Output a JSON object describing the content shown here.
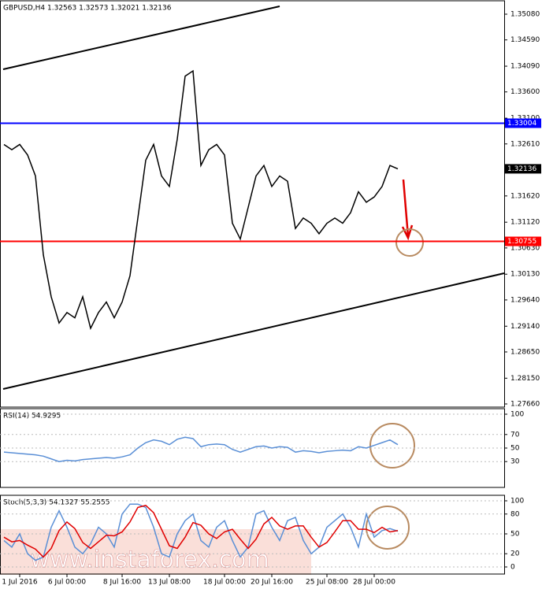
{
  "chart_data": [
    {
      "type": "line",
      "title": "GBPUSD,H4  1.32563 1.32573 1.32021 1.32136",
      "categories": [
        null,
        null,
        "1 Jul 2016",
        null,
        null,
        null,
        null,
        null,
        "6 Jul 00:00",
        null,
        null,
        null,
        null,
        null,
        null,
        "8 Jul 16:00",
        null,
        null,
        null,
        null,
        null,
        "13 Jul 08:00",
        null,
        null,
        null,
        null,
        null,
        null,
        "18 Jul 00:00",
        null,
        null,
        null,
        null,
        null,
        "20 Jul 16:00",
        null,
        null,
        null,
        null,
        null,
        null,
        "25 Jul 08:00",
        null,
        null,
        null,
        null,
        null,
        "28 Jul 00:00",
        null,
        null,
        null
      ],
      "series": [
        {
          "color": "#000000",
          "values": [
            1.326,
            1.325,
            1.326,
            1.324,
            1.32,
            1.305,
            1.297,
            1.292,
            1.294,
            1.293,
            1.297,
            1.291,
            1.294,
            1.296,
            1.293,
            1.296,
            1.301,
            1.312,
            1.323,
            1.326,
            1.32,
            1.318,
            1.327,
            1.339,
            1.34,
            1.322,
            1.325,
            1.326,
            1.324,
            1.311,
            1.308,
            1.314,
            1.32,
            1.322,
            1.318,
            1.32,
            1.319,
            1.31,
            1.312,
            1.311,
            1.309,
            1.311,
            1.312,
            1.311,
            1.313,
            1.317,
            1.315,
            1.316,
            1.318,
            1.322,
            1.32136
          ]
        }
      ],
      "ylim": [
        1.2766,
        1.3508
      ],
      "yticks": [
        {
          "value": 1.3508,
          "label": "1.35080"
        },
        {
          "value": 1.3459,
          "label": "1.34590"
        },
        {
          "value": 1.3409,
          "label": "1.34090"
        },
        {
          "value": 1.336,
          "label": "1.33600"
        },
        {
          "value": 1.331,
          "label": "1.33100"
        },
        {
          "value": 1.3261,
          "label": "1.32610"
        },
        {
          "value": 1.3162,
          "label": "1.31620"
        },
        {
          "value": 1.3112,
          "label": "1.31120"
        },
        {
          "value": 1.3063,
          "label": "1.30630"
        },
        {
          "value": 1.3013,
          "label": "1.30130"
        },
        {
          "value": 1.2964,
          "label": "1.29640"
        },
        {
          "value": 1.2914,
          "label": "1.29140"
        },
        {
          "value": 1.2865,
          "label": "1.28650"
        },
        {
          "value": 1.2815,
          "label": "1.28150"
        },
        {
          "value": 1.2766,
          "label": "1.27660"
        }
      ],
      "levels": [
        {
          "value": 1.33004,
          "color": "#0000ff"
        },
        {
          "value": 1.30755,
          "color": "#ff0000"
        }
      ],
      "last": 1.32136,
      "grid": false
    },
    {
      "type": "line",
      "title": "RSI(14) 54.9295",
      "series": [
        {
          "color": "#5a8fd6",
          "values": [
            44,
            43,
            42,
            41,
            40,
            38,
            34,
            30,
            32,
            31,
            33,
            34,
            35,
            36,
            35,
            37,
            40,
            50,
            58,
            62,
            60,
            55,
            63,
            66,
            64,
            52,
            55,
            56,
            55,
            48,
            44,
            48,
            52,
            53,
            50,
            52,
            51,
            44,
            46,
            45,
            43,
            45,
            46,
            47,
            46,
            52,
            50,
            54,
            58,
            62,
            55
          ]
        }
      ],
      "ylim": [
        0,
        100
      ],
      "yticks": [
        100,
        70,
        50,
        30
      ],
      "grid": true
    },
    {
      "type": "line",
      "title": "Stoch(5,3,3) 54.1327 55.2555",
      "series": [
        {
          "color": "#5a8fd6",
          "values": [
            40,
            30,
            50,
            20,
            10,
            15,
            60,
            85,
            60,
            30,
            20,
            35,
            60,
            50,
            30,
            80,
            95,
            95,
            90,
            60,
            20,
            15,
            50,
            70,
            80,
            40,
            30,
            60,
            70,
            40,
            15,
            30,
            80,
            85,
            60,
            40,
            70,
            75,
            40,
            20,
            30,
            60,
            70,
            80,
            60,
            30,
            80,
            45,
            55,
            58,
            54
          ]
        },
        {
          "color": "#e00000",
          "values": [
            45,
            38,
            40,
            33,
            27,
            15,
            28,
            55,
            68,
            58,
            37,
            28,
            38,
            48,
            47,
            53,
            68,
            90,
            93,
            82,
            57,
            32,
            28,
            45,
            67,
            63,
            50,
            43,
            53,
            57,
            42,
            28,
            42,
            65,
            75,
            62,
            57,
            62,
            62,
            45,
            30,
            37,
            53,
            70,
            70,
            57,
            57,
            52,
            60,
            53,
            55
          ]
        }
      ],
      "ylim": [
        0,
        100
      ],
      "yticks": [
        100,
        80,
        50,
        20,
        0
      ],
      "grid": true
    }
  ],
  "watermark": "www.instaforex.com"
}
